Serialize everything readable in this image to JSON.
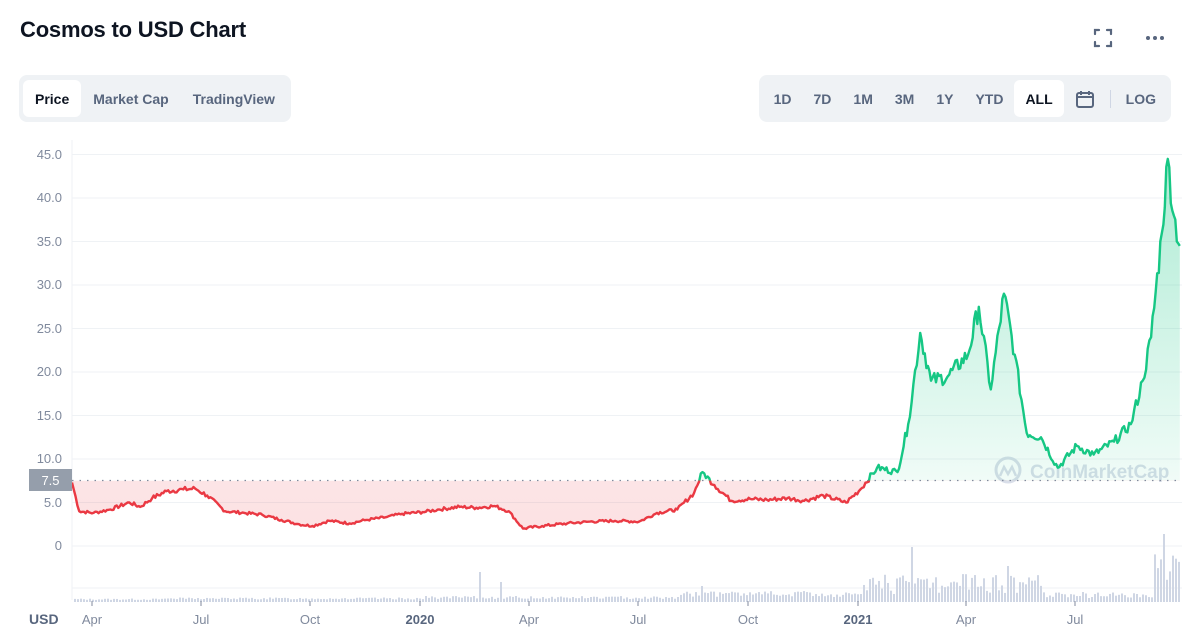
{
  "header": {
    "title": "Cosmos to USD Chart",
    "icons": [
      "fullscreen-icon",
      "more-options-icon"
    ]
  },
  "chart_type_tabs": [
    {
      "label": "Price",
      "active": true
    },
    {
      "label": "Market Cap",
      "active": false
    },
    {
      "label": "TradingView",
      "active": false
    }
  ],
  "range_tabs": [
    {
      "label": "1D",
      "active": false
    },
    {
      "label": "7D",
      "active": false
    },
    {
      "label": "1M",
      "active": false
    },
    {
      "label": "3M",
      "active": false
    },
    {
      "label": "1Y",
      "active": false
    },
    {
      "label": "YTD",
      "active": false
    },
    {
      "label": "ALL",
      "active": true
    }
  ],
  "calendar_icon": "calendar-icon",
  "log_label": "LOG",
  "axis": {
    "currency_label": "USD",
    "current_price_badge": "7.5",
    "y_ticks": [
      "45.0",
      "40.0",
      "35.0",
      "30.0",
      "25.0",
      "20.0",
      "15.0",
      "10.0",
      "5.0",
      "0"
    ],
    "x_ticks": [
      {
        "label": "Apr",
        "bold": false
      },
      {
        "label": "Jul",
        "bold": false
      },
      {
        "label": "Oct",
        "bold": false
      },
      {
        "label": "2020",
        "bold": true
      },
      {
        "label": "Apr",
        "bold": false
      },
      {
        "label": "Jul",
        "bold": false
      },
      {
        "label": "Oct",
        "bold": false
      },
      {
        "label": "2021",
        "bold": true
      },
      {
        "label": "Apr",
        "bold": false
      },
      {
        "label": "Jul",
        "bold": false
      }
    ]
  },
  "watermark": "CoinMarketCap",
  "colors": {
    "up": "#16c784",
    "down": "#ea3943",
    "grid": "#eff2f5",
    "axis_text": "#808a9d",
    "volume": "#cfd6e4"
  },
  "chart_data": {
    "type": "line",
    "title": "Cosmos to USD Chart",
    "xlabel": "",
    "ylabel": "USD",
    "ylim": [
      0,
      45
    ],
    "grid": true,
    "baseline_price": 7.5,
    "x_range": [
      "2019-03",
      "2021-09"
    ],
    "x": [
      "2019-03-14",
      "2019-03-20",
      "2019-04-01",
      "2019-04-15",
      "2019-05-01",
      "2019-05-10",
      "2019-05-20",
      "2019-06-01",
      "2019-06-15",
      "2019-06-25",
      "2019-07-05",
      "2019-07-20",
      "2019-08-05",
      "2019-08-20",
      "2019-09-05",
      "2019-09-20",
      "2019-10-01",
      "2019-10-15",
      "2019-11-01",
      "2019-11-15",
      "2019-12-01",
      "2019-12-15",
      "2020-01-01",
      "2020-01-15",
      "2020-02-01",
      "2020-02-15",
      "2020-03-01",
      "2020-03-13",
      "2020-03-25",
      "2020-04-10",
      "2020-05-01",
      "2020-05-20",
      "2020-06-10",
      "2020-06-30",
      "2020-07-15",
      "2020-08-01",
      "2020-08-15",
      "2020-08-22",
      "2020-09-01",
      "2020-09-15",
      "2020-10-01",
      "2020-10-15",
      "2020-11-01",
      "2020-11-15",
      "2020-12-01",
      "2020-12-20",
      "2021-01-01",
      "2021-01-15",
      "2021-02-01",
      "2021-02-10",
      "2021-02-20",
      "2021-03-01",
      "2021-03-15",
      "2021-04-01",
      "2021-04-10",
      "2021-04-20",
      "2021-05-01",
      "2021-05-10",
      "2021-05-20",
      "2021-06-01",
      "2021-06-15",
      "2021-07-01",
      "2021-07-15",
      "2021-08-01",
      "2021-08-15",
      "2021-08-25",
      "2021-09-01",
      "2021-09-10",
      "2021-09-15",
      "2021-09-20",
      "2021-09-25"
    ],
    "values": [
      7.3,
      4.0,
      3.8,
      4.2,
      5.0,
      4.5,
      5.5,
      6.3,
      6.5,
      6.6,
      5.8,
      4.0,
      3.8,
      3.6,
      3.0,
      2.5,
      2.3,
      2.9,
      2.6,
      3.0,
      3.3,
      3.7,
      3.9,
      4.2,
      4.5,
      4.4,
      4.6,
      4.0,
      2.0,
      2.3,
      2.6,
      2.8,
      2.9,
      2.8,
      3.8,
      4.2,
      6.1,
      8.5,
      7.0,
      5.2,
      5.4,
      5.3,
      5.5,
      5.2,
      5.8,
      5.0,
      6.5,
      9.0,
      8.5,
      14.0,
      24.5,
      19.0,
      19.5,
      22.0,
      27.5,
      18.0,
      29.0,
      22.0,
      13.0,
      12.5,
      9.0,
      11.5,
      10.5,
      12.0,
      14.0,
      19.0,
      24.0,
      36.0,
      44.5,
      38.0,
      34.5
    ],
    "volume": {
      "description": "Daily trading volume histogram beneath the price line; spikes around Feb 2020, Aug 2020, Feb 2021, May 2021, and Sep 2021 (highest)"
    }
  }
}
